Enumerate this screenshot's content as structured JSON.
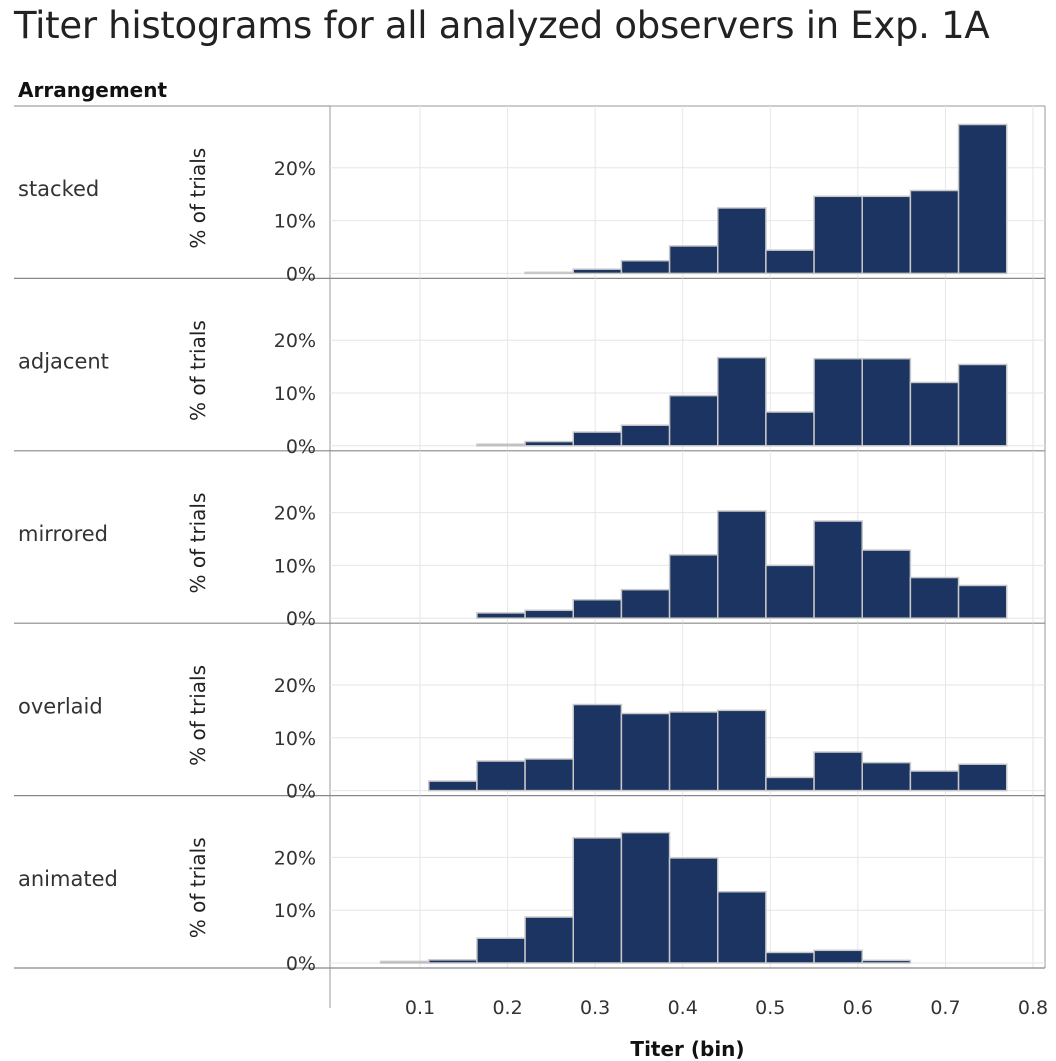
{
  "page": {
    "title": "Titer histograms for all analyzed observers in Exp. 1A",
    "row_header": "Arrangement"
  },
  "chart_data": {
    "type": "bar",
    "title": "Titer histograms for all analyzed observers in Exp. 1A",
    "xlabel": "Titer (bin)",
    "ylabel": "% of trials",
    "xlim": [
      0.0,
      0.8
    ],
    "ylim": [
      0,
      30
    ],
    "x_ticks": [
      "0.1",
      "0.2",
      "0.3",
      "0.4",
      "0.5",
      "0.6",
      "0.7",
      "0.8"
    ],
    "x_tick_values": [
      0.1,
      0.2,
      0.3,
      0.4,
      0.5,
      0.6,
      0.7,
      0.8
    ],
    "y_ticks": [
      "0%",
      "10%",
      "20%"
    ],
    "y_tick_values": [
      0,
      10,
      20
    ],
    "bin_width": 0.055,
    "bin_starts": [
      0.055,
      0.11,
      0.165,
      0.22,
      0.275,
      0.33,
      0.385,
      0.44,
      0.495,
      0.55,
      0.605,
      0.66,
      0.715,
      0.77
    ],
    "grid": true,
    "bar_color": "#1b3461",
    "bar_edge_color": "#c8c8c8",
    "series": [
      {
        "name": "stacked",
        "values": [
          0,
          0,
          0,
          0.2,
          0.8,
          2.4,
          5.2,
          12.4,
          4.4,
          14.6,
          14.6,
          15.7,
          28.2,
          0
        ]
      },
      {
        "name": "adjacent",
        "values": [
          0,
          0,
          0.3,
          0.8,
          2.6,
          3.9,
          9.5,
          16.7,
          6.4,
          16.5,
          16.5,
          12.0,
          15.4,
          0
        ]
      },
      {
        "name": "mirrored",
        "values": [
          0,
          0,
          1.0,
          1.5,
          3.5,
          5.4,
          12.0,
          20.3,
          10.0,
          18.4,
          12.9,
          7.7,
          6.2,
          0
        ]
      },
      {
        "name": "overlaid",
        "values": [
          0,
          1.8,
          5.6,
          6.0,
          16.3,
          14.6,
          14.9,
          15.2,
          2.5,
          7.3,
          5.3,
          3.7,
          5.0,
          0
        ]
      },
      {
        "name": "animated",
        "values": [
          0.3,
          0.6,
          4.7,
          8.7,
          23.7,
          24.7,
          19.9,
          13.5,
          2.0,
          2.4,
          0.5,
          0,
          0,
          0
        ]
      }
    ]
  }
}
